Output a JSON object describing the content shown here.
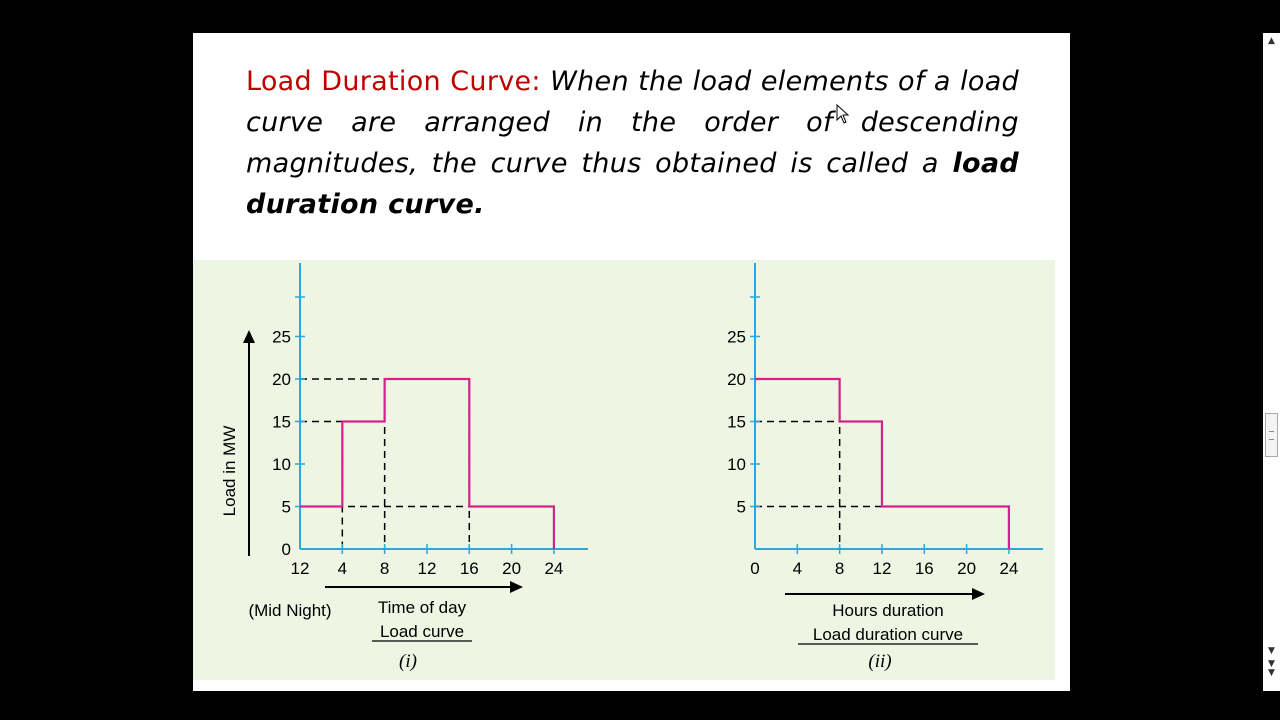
{
  "slide": {
    "heading": "Load Duration Curve:",
    "definition": "When the load elements of a load curve are arranged in the order of descending magnitudes, the curve thus obtained is called a",
    "term": "load duration curve."
  },
  "chart_data": [
    {
      "type": "line",
      "subtype": "step",
      "caption": "(i)",
      "title": "Load curve",
      "xlabel": "Time of day",
      "xlabel_note": "(Mid Night)",
      "ylabel": "Load in MW",
      "x_ticks": [
        "12",
        "4",
        "8",
        "12",
        "16",
        "20",
        "24"
      ],
      "y_ticks": [
        "0",
        "5",
        "10",
        "15",
        "20",
        "25"
      ],
      "xlim": [
        0,
        24
      ],
      "ylim": [
        0,
        25
      ],
      "series": [
        {
          "x": [
            0,
            4,
            4,
            8,
            8,
            16,
            16,
            24,
            24
          ],
          "y": [
            5,
            5,
            15,
            15,
            20,
            20,
            5,
            5,
            0
          ]
        }
      ],
      "guides": {
        "vertical_x": [
          4,
          8,
          16
        ],
        "horizontal_y": [
          5,
          15,
          20
        ]
      }
    },
    {
      "type": "line",
      "subtype": "step",
      "caption": "(ii)",
      "title": "Load duration curve",
      "xlabel": "Hours duration",
      "x_ticks": [
        "0",
        "4",
        "8",
        "12",
        "16",
        "20",
        "24"
      ],
      "y_ticks": [
        "5",
        "10",
        "15",
        "20",
        "25"
      ],
      "xlim": [
        0,
        24
      ],
      "ylim": [
        0,
        25
      ],
      "series": [
        {
          "x": [
            0,
            8,
            8,
            12,
            12,
            24,
            24
          ],
          "y": [
            20,
            20,
            15,
            15,
            5,
            5,
            0
          ]
        }
      ],
      "guides": {
        "vertical_x": [
          8
        ],
        "horizontal_y": [
          5,
          15
        ]
      }
    }
  ],
  "colors": {
    "axis": "#29a9e0",
    "curve": "#d6218c",
    "heading": "#c00000",
    "figure_bg": "#eef5e3"
  },
  "icons": {
    "cursor": "mouse-pointer-icon",
    "scroll_up": "arrow-up-icon",
    "scroll_down": "arrow-down-icon",
    "scroll_end": "double-arrow-down-icon"
  }
}
